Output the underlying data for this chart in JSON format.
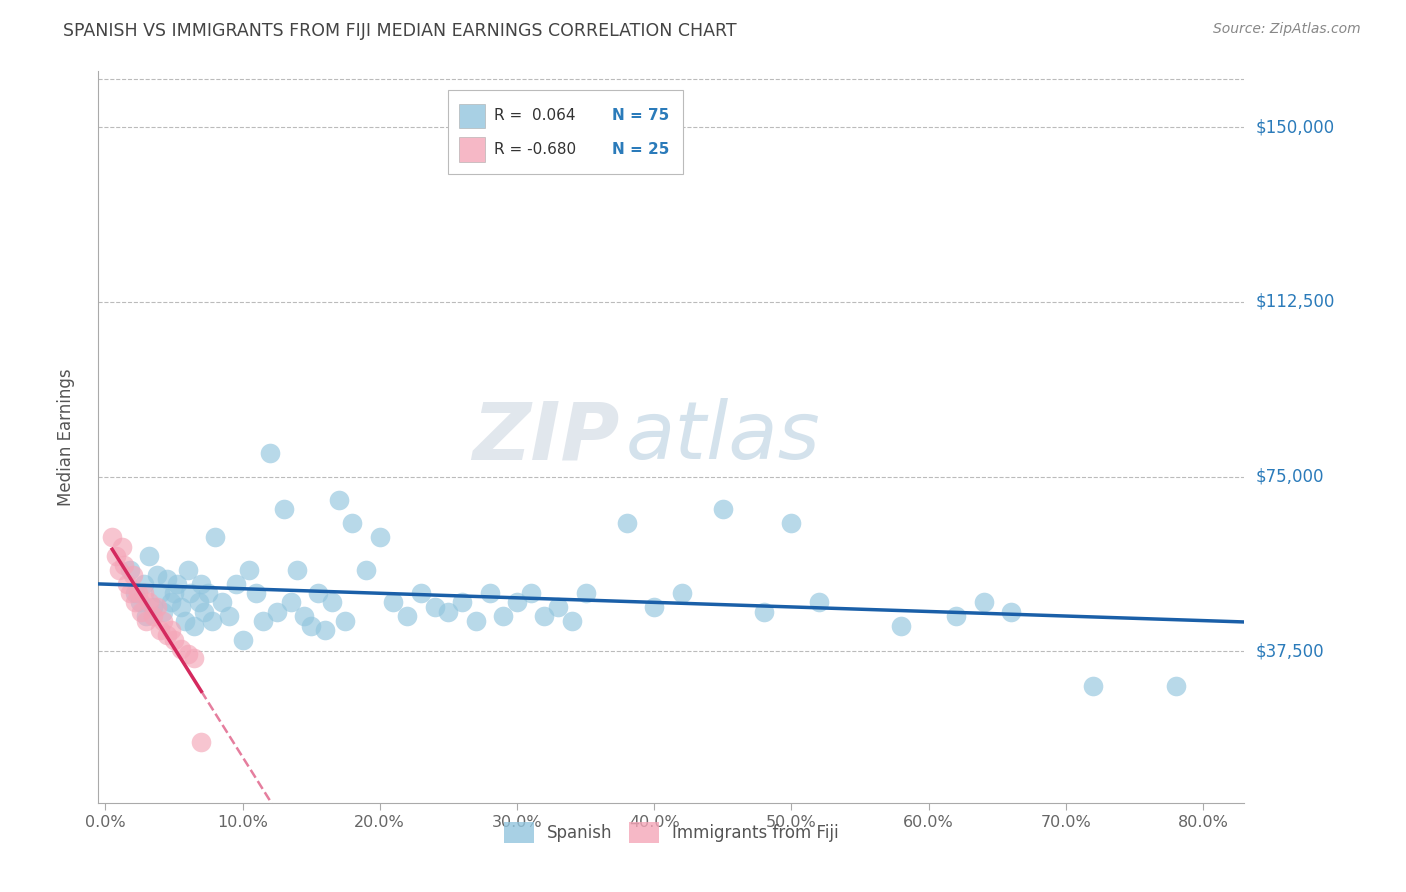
{
  "title": "SPANISH VS IMMIGRANTS FROM FIJI MEDIAN EARNINGS CORRELATION CHART",
  "source": "Source: ZipAtlas.com",
  "ylabel": "Median Earnings",
  "watermark_zip": "ZIP",
  "watermark_atlas": "atlas",
  "legend_R_blue": "R =  0.064",
  "legend_N_blue": "N = 75",
  "legend_R_pink": "R = -0.680",
  "legend_N_pink": "N = 25",
  "x_tick_labels": [
    "0.0%",
    "10.0%",
    "20.0%",
    "30.0%",
    "40.0%",
    "50.0%",
    "60.0%",
    "70.0%",
    "80.0%"
  ],
  "y_tick_labels": [
    "$37,500",
    "$75,000",
    "$112,500",
    "$150,000"
  ],
  "y_tick_values": [
    37500,
    75000,
    112500,
    150000
  ],
  "x_min": -0.005,
  "x_max": 0.83,
  "y_min": 5000,
  "y_max": 162000,
  "blue_color": "#92c5de",
  "pink_color": "#f4a6b8",
  "trend_blue": "#1a5fa8",
  "trend_pink": "#d4295e",
  "background_color": "#ffffff",
  "grid_color": "#bbbbbb",
  "title_color": "#444444",
  "right_label_color": "#2b7bba",
  "blue_scatter_x": [
    0.018,
    0.022,
    0.025,
    0.028,
    0.03,
    0.032,
    0.035,
    0.038,
    0.04,
    0.042,
    0.045,
    0.048,
    0.05,
    0.052,
    0.055,
    0.058,
    0.06,
    0.062,
    0.065,
    0.068,
    0.07,
    0.072,
    0.075,
    0.078,
    0.08,
    0.085,
    0.09,
    0.095,
    0.1,
    0.105,
    0.11,
    0.115,
    0.12,
    0.125,
    0.13,
    0.135,
    0.14,
    0.145,
    0.15,
    0.155,
    0.16,
    0.165,
    0.17,
    0.175,
    0.18,
    0.19,
    0.2,
    0.21,
    0.22,
    0.23,
    0.24,
    0.25,
    0.26,
    0.27,
    0.28,
    0.29,
    0.3,
    0.31,
    0.32,
    0.33,
    0.34,
    0.35,
    0.38,
    0.4,
    0.42,
    0.45,
    0.48,
    0.5,
    0.52,
    0.58,
    0.62,
    0.64,
    0.66,
    0.72,
    0.78
  ],
  "blue_scatter_y": [
    55000,
    50000,
    48000,
    52000,
    45000,
    58000,
    47000,
    54000,
    50000,
    46000,
    53000,
    48000,
    50000,
    52000,
    47000,
    44000,
    55000,
    50000,
    43000,
    48000,
    52000,
    46000,
    50000,
    44000,
    62000,
    48000,
    45000,
    52000,
    40000,
    55000,
    50000,
    44000,
    80000,
    46000,
    68000,
    48000,
    55000,
    45000,
    43000,
    50000,
    42000,
    48000,
    70000,
    44000,
    65000,
    55000,
    62000,
    48000,
    45000,
    50000,
    47000,
    46000,
    48000,
    44000,
    50000,
    45000,
    48000,
    50000,
    45000,
    47000,
    44000,
    50000,
    65000,
    47000,
    50000,
    68000,
    46000,
    65000,
    48000,
    43000,
    45000,
    48000,
    46000,
    30000,
    30000
  ],
  "pink_scatter_x": [
    0.005,
    0.008,
    0.01,
    0.012,
    0.014,
    0.016,
    0.018,
    0.02,
    0.022,
    0.024,
    0.026,
    0.028,
    0.03,
    0.032,
    0.035,
    0.038,
    0.04,
    0.042,
    0.045,
    0.048,
    0.05,
    0.055,
    0.06,
    0.065,
    0.07
  ],
  "pink_scatter_y": [
    62000,
    58000,
    55000,
    60000,
    56000,
    52000,
    50000,
    54000,
    48000,
    50000,
    46000,
    50000,
    44000,
    48000,
    45000,
    47000,
    42000,
    44000,
    41000,
    42000,
    40000,
    38000,
    37000,
    36000,
    18000
  ]
}
